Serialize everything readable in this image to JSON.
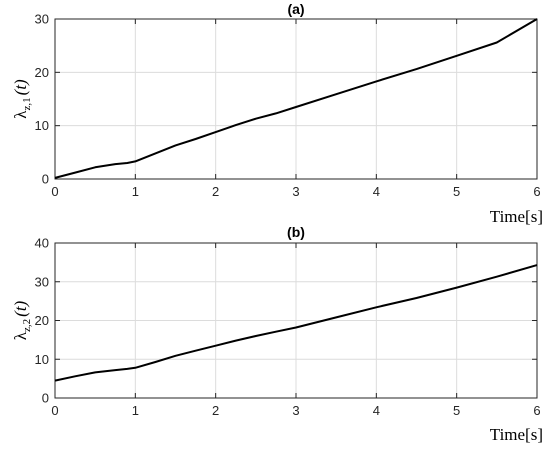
{
  "chart_data": [
    {
      "type": "line",
      "title": "(a)",
      "xlabel": "Time[s]",
      "ylabel": {
        "main": "λ",
        "sub": "z,1",
        "arg": "(t)"
      },
      "xlim": [
        0,
        6
      ],
      "ylim": [
        0,
        30
      ],
      "xticks": [
        "0",
        "1",
        "2",
        "3",
        "4",
        "5",
        "6"
      ],
      "yticks": [
        "0",
        "10",
        "20",
        "30"
      ],
      "grid": true,
      "series": [
        {
          "x": [
            0,
            0.25,
            0.5,
            0.75,
            0.9,
            1.0,
            1.25,
            1.5,
            1.75,
            2.0,
            2.25,
            2.5,
            2.75,
            3.0,
            3.5,
            4.0,
            4.5,
            5.0,
            5.5,
            6.0
          ],
          "values": [
            0.2,
            1.2,
            2.2,
            2.8,
            3.0,
            3.3,
            4.8,
            6.3,
            7.5,
            8.8,
            10.1,
            11.3,
            12.3,
            13.5,
            15.9,
            18.3,
            20.6,
            23.1,
            25.6,
            30.0
          ]
        }
      ]
    },
    {
      "type": "line",
      "title": "(b)",
      "xlabel": "Time[s]",
      "ylabel": {
        "main": "λ",
        "sub": "z,2",
        "arg": "(t)"
      },
      "xlim": [
        0,
        6
      ],
      "ylim": [
        0,
        40
      ],
      "xticks": [
        "0",
        "1",
        "2",
        "3",
        "4",
        "5",
        "6"
      ],
      "yticks": [
        "0",
        "10",
        "20",
        "30",
        "40"
      ],
      "grid": true,
      "series": [
        {
          "x": [
            0,
            0.25,
            0.5,
            0.75,
            0.9,
            1.0,
            1.25,
            1.5,
            1.75,
            2.0,
            2.25,
            2.5,
            2.75,
            3.0,
            3.5,
            4.0,
            4.5,
            5.0,
            5.5,
            6.0
          ],
          "values": [
            4.5,
            5.6,
            6.6,
            7.2,
            7.5,
            7.8,
            9.3,
            10.9,
            12.2,
            13.5,
            14.8,
            16.0,
            17.1,
            18.2,
            20.8,
            23.4,
            25.8,
            28.5,
            31.3,
            34.3
          ]
        }
      ]
    }
  ]
}
